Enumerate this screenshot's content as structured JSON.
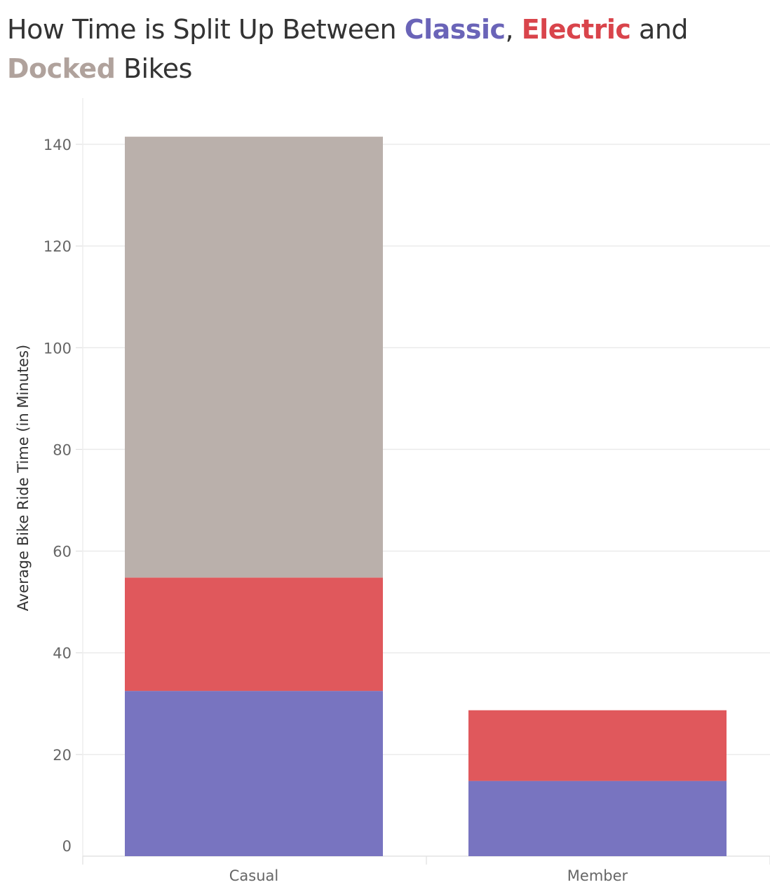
{
  "title": {
    "parts": [
      {
        "text": "How Time is Split Up Between ",
        "color": "#333333",
        "keyword": false
      },
      {
        "text": "Classic",
        "color": "#6a64b8",
        "keyword": true
      },
      {
        "text": ", ",
        "color": "#333333",
        "keyword": false
      },
      {
        "text": "Electric",
        "color": "#d9444b",
        "keyword": true
      },
      {
        "text": " and",
        "color": "#333333",
        "keyword": false
      },
      {
        "text": "Docked",
        "color": "#b0a29c",
        "keyword": true,
        "newline_before": true
      },
      {
        "text": " Bikes",
        "color": "#333333",
        "keyword": false
      }
    ]
  },
  "chart_data": {
    "type": "bar",
    "stacked": true,
    "categories": [
      "Casual",
      "Member"
    ],
    "series": [
      {
        "name": "Classic",
        "color": "#7874c0",
        "values": [
          32.5,
          14.8
        ]
      },
      {
        "name": "Electric",
        "color": "#e0585c",
        "values": [
          22.3,
          13.9
        ]
      },
      {
        "name": "Docked",
        "color": "#bab0ab",
        "values": [
          86.7,
          0
        ]
      }
    ],
    "ylabel": "Average Bike Ride Time (in Minutes)",
    "xlabel": "",
    "yticks": [
      0,
      20,
      40,
      60,
      80,
      100,
      120,
      140
    ],
    "ylim": [
      0,
      140
    ],
    "grid": true,
    "legend": "none"
  }
}
